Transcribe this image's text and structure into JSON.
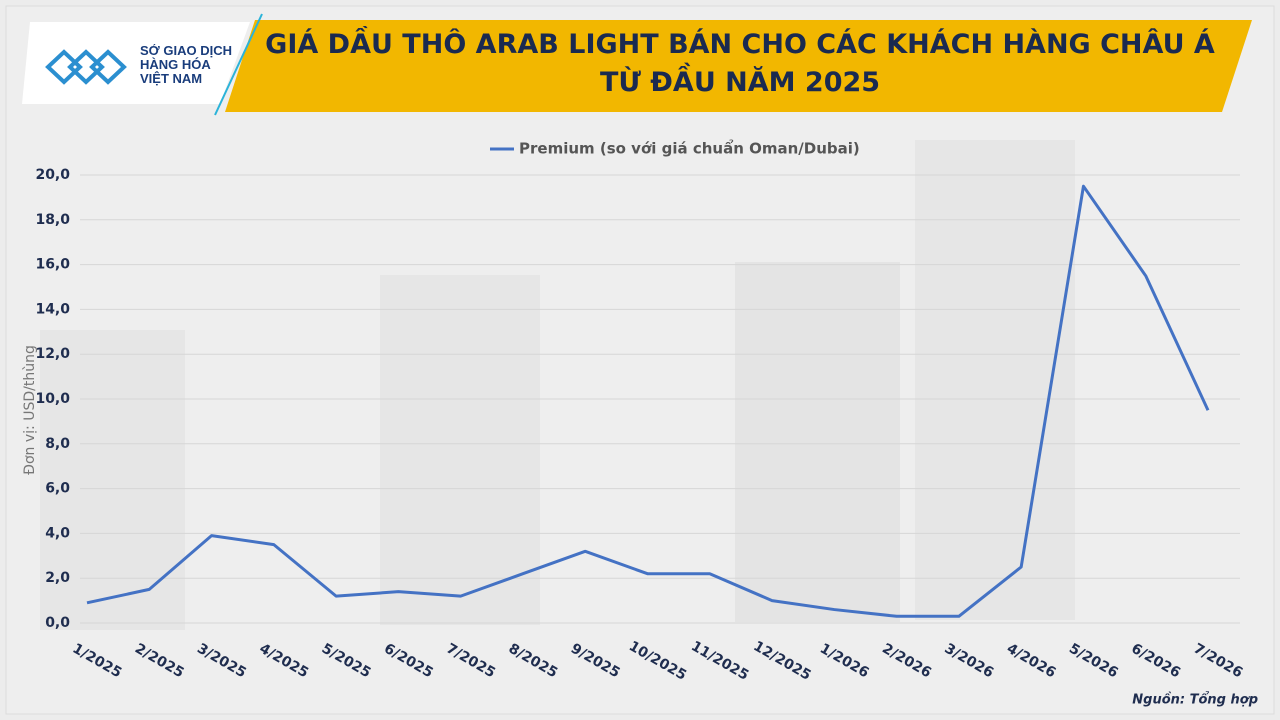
{
  "logo": [
    "SỞ GIAO DỊCH",
    "HÀNG HÓA",
    "VIỆT NAM"
  ],
  "chart_data": {
    "type": "line",
    "title": "GIÁ DẦU THÔ ARAB LIGHT BÁN CHO CÁC KHÁCH HÀNG CHÂU Á TỪ ĐẦU NĂM 2025",
    "y_label": "Đơn vị: USD/thùng",
    "source": "Nguồn: Tổng hợp",
    "categories": [
      "1/2025",
      "2/2025",
      "3/2025",
      "4/2025",
      "5/2025",
      "6/2025",
      "7/2025",
      "8/2025",
      "9/2025",
      "10/2025",
      "11/2025",
      "12/2025",
      "1/2026",
      "2/2026",
      "3/2026",
      "4/2026",
      "5/2026",
      "6/2026",
      "7/2026"
    ],
    "series": [
      {
        "name": "Premium (so với giá chuẩn Oman/Dubai)",
        "color": "#4472c4",
        "values": [
          0.9,
          1.5,
          3.9,
          3.5,
          1.2,
          1.4,
          1.2,
          2.2,
          3.2,
          2.2,
          2.2,
          1.0,
          0.6,
          0.3,
          0.3,
          2.5,
          19.5,
          15.5,
          9.5
        ]
      }
    ],
    "ylim": [
      0,
      20
    ],
    "yticks": [
      {
        "value": 0,
        "label": "0,0"
      },
      {
        "value": 2,
        "label": "2,0"
      },
      {
        "value": 4,
        "label": "4,0"
      },
      {
        "value": 6,
        "label": "6,0"
      },
      {
        "value": 8,
        "label": "8,0"
      },
      {
        "value": 10,
        "label": "10,0"
      },
      {
        "value": 12,
        "label": "12,0"
      },
      {
        "value": 14,
        "label": "14,0"
      },
      {
        "value": 16,
        "label": "16,0"
      },
      {
        "value": 18,
        "label": "18,0"
      },
      {
        "value": 20,
        "label": "20,0"
      }
    ],
    "grid": true,
    "legend": "top"
  }
}
